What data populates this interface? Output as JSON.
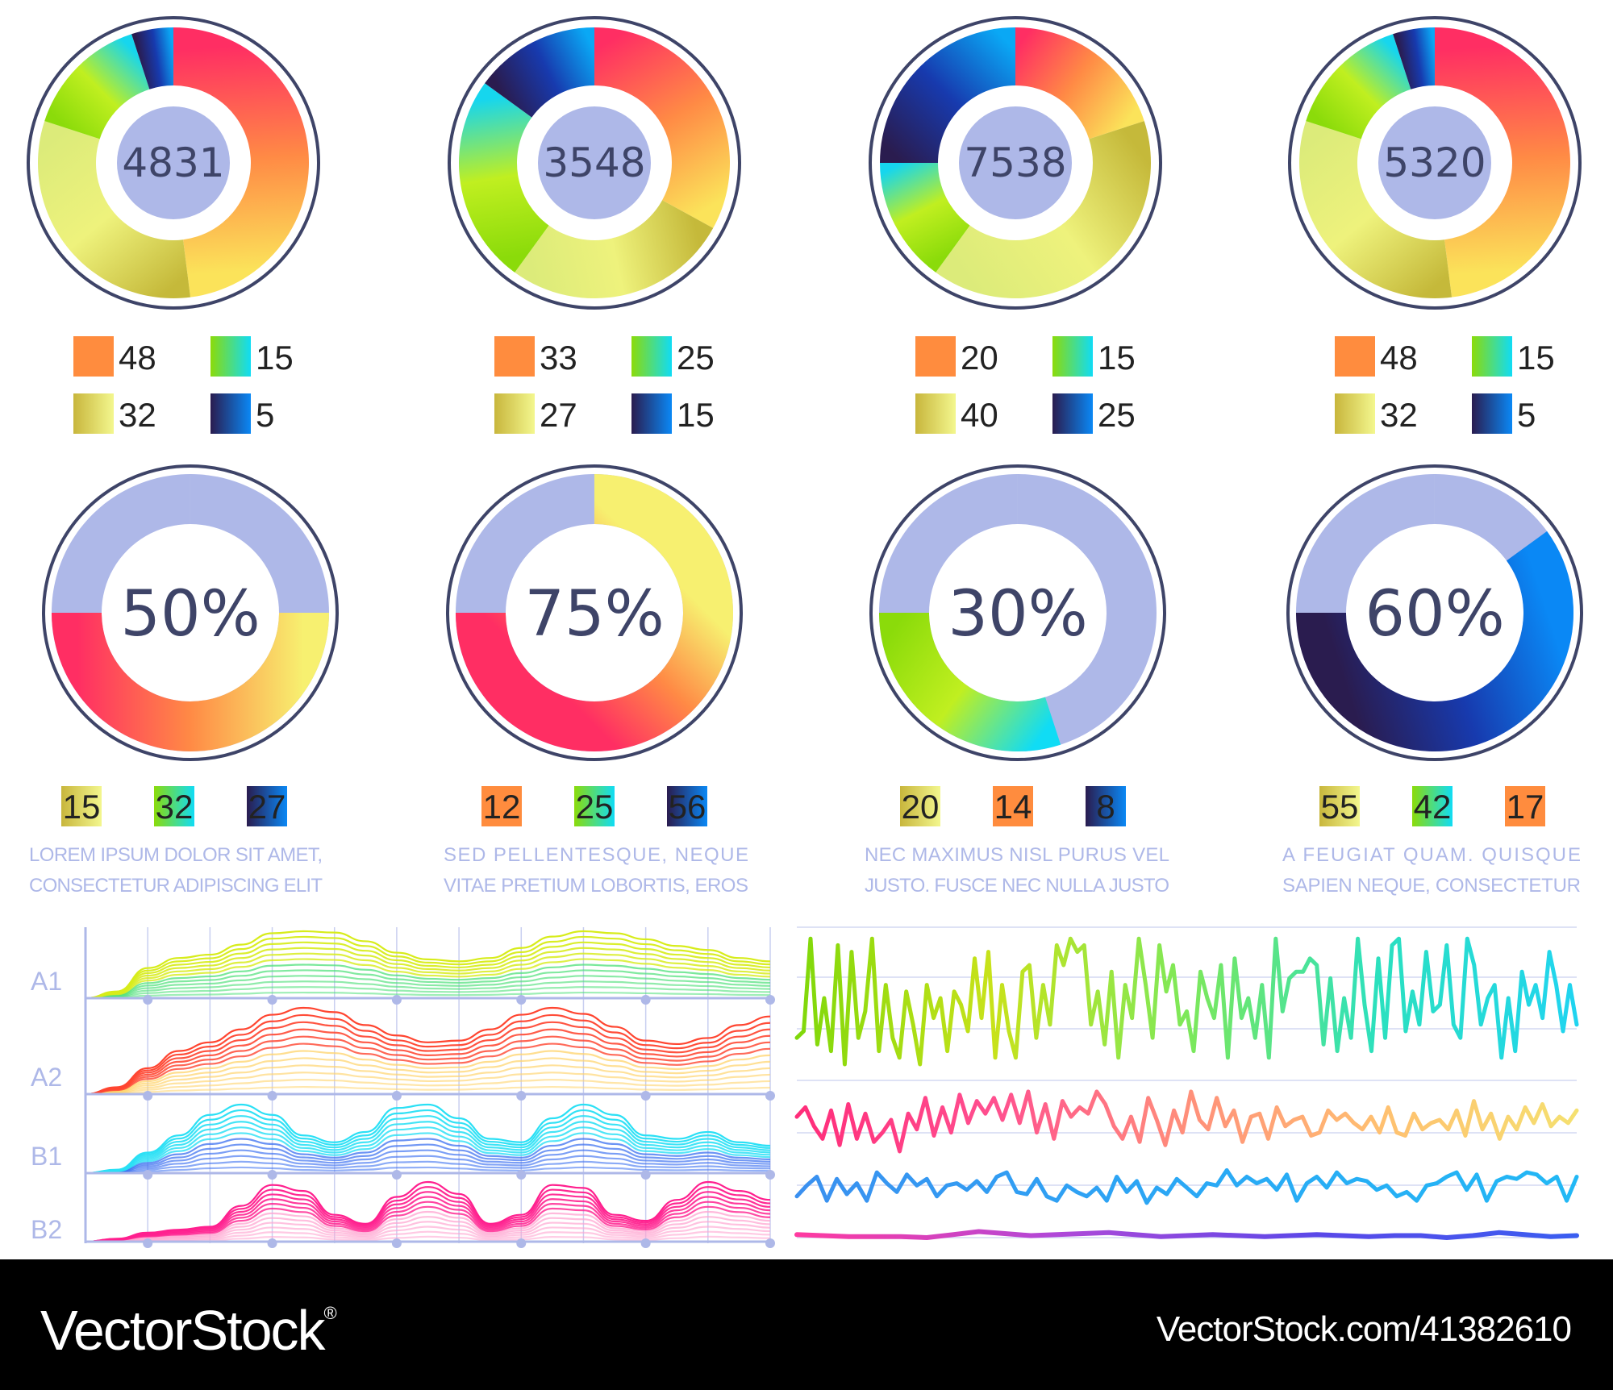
{
  "chart_data": [
    {
      "type": "pie",
      "center_label": "4831",
      "slices": [
        {
          "value": 48,
          "gradient": [
            "#ff2e63",
            "#ff8a45",
            "#fbe35a"
          ]
        },
        {
          "value": 32,
          "gradient": [
            "#c5b93a",
            "#eef27c",
            "#dceb7a"
          ]
        },
        {
          "value": 15,
          "gradient": [
            "#8bdb0a",
            "#c0ef20",
            "#16d6ee"
          ]
        },
        {
          "value": 5,
          "gradient": [
            "#2a1c4f",
            "#173aae",
            "#0aa8f5"
          ]
        }
      ],
      "legend": [
        {
          "value": "48",
          "swatch": [
            "#ff8c3e",
            "#ff8c3e"
          ]
        },
        {
          "value": "15",
          "swatch": [
            "#8bdb0a",
            "#10dcf5"
          ]
        },
        {
          "value": "32",
          "swatch": [
            "#c8b63c",
            "#f3f78e"
          ]
        },
        {
          "value": "5",
          "swatch": [
            "#2a1c4f",
            "#0a88f5"
          ]
        }
      ]
    },
    {
      "type": "pie",
      "center_label": "3548",
      "slices": [
        {
          "value": 33,
          "gradient": [
            "#ff2e63",
            "#ff8a45",
            "#fbe35a"
          ]
        },
        {
          "value": 27,
          "gradient": [
            "#c5b93a",
            "#eef27c",
            "#dceb7a"
          ]
        },
        {
          "value": 25,
          "gradient": [
            "#8bdb0a",
            "#c0ef20",
            "#16d6ee"
          ]
        },
        {
          "value": 15,
          "gradient": [
            "#2a1c4f",
            "#173aae",
            "#0aa8f5"
          ]
        }
      ],
      "legend": [
        {
          "value": "33",
          "swatch": [
            "#ff8c3e",
            "#ff8c3e"
          ]
        },
        {
          "value": "25",
          "swatch": [
            "#8bdb0a",
            "#10dcf5"
          ]
        },
        {
          "value": "27",
          "swatch": [
            "#c8b63c",
            "#f3f78e"
          ]
        },
        {
          "value": "15",
          "swatch": [
            "#2a1c4f",
            "#0a88f5"
          ]
        }
      ]
    },
    {
      "type": "pie",
      "center_label": "7538",
      "slices": [
        {
          "value": 20,
          "gradient": [
            "#ff2e63",
            "#ff8a45",
            "#fbe35a"
          ]
        },
        {
          "value": 40,
          "gradient": [
            "#c5b93a",
            "#eef27c",
            "#dceb7a"
          ]
        },
        {
          "value": 15,
          "gradient": [
            "#8bdb0a",
            "#c0ef20",
            "#16d6ee"
          ]
        },
        {
          "value": 25,
          "gradient": [
            "#2a1c4f",
            "#173aae",
            "#0aa8f5"
          ]
        }
      ],
      "legend": [
        {
          "value": "20",
          "swatch": [
            "#ff8c3e",
            "#ff8c3e"
          ]
        },
        {
          "value": "15",
          "swatch": [
            "#8bdb0a",
            "#10dcf5"
          ]
        },
        {
          "value": "40",
          "swatch": [
            "#c8b63c",
            "#f3f78e"
          ]
        },
        {
          "value": "25",
          "swatch": [
            "#2a1c4f",
            "#0a88f5"
          ]
        }
      ]
    },
    {
      "type": "pie",
      "center_label": "5320",
      "slices": [
        {
          "value": 48,
          "gradient": [
            "#ff2e63",
            "#ff8a45",
            "#fbe35a"
          ]
        },
        {
          "value": 32,
          "gradient": [
            "#c5b93a",
            "#eef27c",
            "#dceb7a"
          ]
        },
        {
          "value": 15,
          "gradient": [
            "#8bdb0a",
            "#c0ef20",
            "#16d6ee"
          ]
        },
        {
          "value": 5,
          "gradient": [
            "#2a1c4f",
            "#173aae",
            "#0aa8f5"
          ]
        }
      ],
      "legend": [
        {
          "value": "48",
          "swatch": [
            "#ff8c3e",
            "#ff8c3e"
          ]
        },
        {
          "value": "15",
          "swatch": [
            "#8bdb0a",
            "#10dcf5"
          ]
        },
        {
          "value": "32",
          "swatch": [
            "#c8b63c",
            "#f3f78e"
          ]
        },
        {
          "value": "5",
          "swatch": [
            "#2a1c4f",
            "#0a88f5"
          ]
        }
      ]
    },
    {
      "type": "pie",
      "center_label": "50%",
      "percent": 50,
      "track_color": "#aeb8e8",
      "gradient": [
        "#ff2e63",
        "#ff8a45",
        "#f7f070"
      ],
      "start": "left",
      "legend": [
        {
          "value": "15",
          "swatch": [
            "#c8b63c",
            "#f3f78e"
          ]
        },
        {
          "value": "32",
          "swatch": [
            "#8bdb0a",
            "#10dcf5"
          ]
        },
        {
          "value": "27",
          "swatch": [
            "#2a1c4f",
            "#0a88f5"
          ]
        }
      ],
      "caption": [
        "LOREM IPSUM DOLOR SIT AMET,",
        "CONSECTETUR ADIPISCING ELIT"
      ]
    },
    {
      "type": "pie",
      "center_label": "75%",
      "percent": 75,
      "track_color": "#aeb8e8",
      "gradient": [
        "#ff2e63",
        "#ff8a45",
        "#f7f070"
      ],
      "start": "left",
      "legend": [
        {
          "value": "12",
          "swatch": [
            "#ff8c3e",
            "#ff8c3e"
          ]
        },
        {
          "value": "25",
          "swatch": [
            "#8bdb0a",
            "#10dcf5"
          ]
        },
        {
          "value": "56",
          "swatch": [
            "#2a1c4f",
            "#0a88f5"
          ]
        }
      ],
      "caption": [
        "SED PELLENTESQUE, NEQUE",
        "VITAE PRETIUM LOBORTIS, EROS"
      ]
    },
    {
      "type": "pie",
      "center_label": "30%",
      "percent": 30,
      "track_color": "#aeb8e8",
      "gradient": [
        "#8bdb0a",
        "#c0ef20",
        "#10dcf5"
      ],
      "start": "left",
      "legend": [
        {
          "value": "20",
          "swatch": [
            "#c8b63c",
            "#f3f78e"
          ]
        },
        {
          "value": "14",
          "swatch": [
            "#ff8c3e",
            "#ff8c3e"
          ]
        },
        {
          "value": "8",
          "swatch": [
            "#2a1c4f",
            "#0a88f5"
          ]
        }
      ],
      "caption": [
        "NEC MAXIMUS NISL PURUS VEL",
        "JUSTO. FUSCE NEC NULLA JUSTO"
      ]
    },
    {
      "type": "pie",
      "center_label": "60%",
      "percent": 60,
      "track_color": "#aeb8e8",
      "gradient": [
        "#2a1c4f",
        "#173aae",
        "#0a88f5"
      ],
      "start": "left",
      "legend": [
        {
          "value": "55",
          "swatch": [
            "#c8b63c",
            "#f3f78e"
          ]
        },
        {
          "value": "42",
          "swatch": [
            "#8bdb0a",
            "#10dcf5"
          ]
        },
        {
          "value": "17",
          "swatch": [
            "#ff8c3e",
            "#ff8c3e"
          ]
        }
      ],
      "caption": [
        "A FEUGIAT QUAM. QUISQUE",
        "SAPIEN NEQUE, CONSECTETUR"
      ]
    },
    {
      "type": "area",
      "grid": true,
      "x": [
        0,
        0.5,
        1,
        1.5,
        2,
        2.5,
        3,
        3.5,
        4,
        4.5,
        5,
        5.5,
        6,
        6.5,
        7,
        7.5,
        8,
        8.5,
        9,
        9.5,
        10,
        10.5,
        11
      ],
      "series": [
        {
          "name": "A1",
          "colors": [
            "#4fe07a",
            "#d7ec1a"
          ],
          "values": [
            0,
            0.1,
            0.45,
            0.6,
            0.65,
            0.8,
            0.97,
            1.0,
            0.98,
            0.85,
            0.68,
            0.58,
            0.55,
            0.6,
            0.75,
            0.92,
            1.0,
            0.97,
            0.88,
            0.78,
            0.72,
            0.6,
            0.55
          ]
        },
        {
          "name": "A2",
          "colors": [
            "#ffd36a",
            "#ff4530"
          ],
          "values": [
            0,
            0.08,
            0.3,
            0.5,
            0.6,
            0.75,
            0.92,
            1.0,
            0.95,
            0.8,
            0.68,
            0.6,
            0.62,
            0.75,
            0.92,
            1.0,
            0.93,
            0.78,
            0.62,
            0.58,
            0.65,
            0.8,
            0.9
          ]
        },
        {
          "name": "B1",
          "colors": [
            "#3a6ff0",
            "#2ae0f5"
          ],
          "values": [
            0,
            0.05,
            0.3,
            0.55,
            0.85,
            1.0,
            0.85,
            0.55,
            0.45,
            0.6,
            0.95,
            1.0,
            0.8,
            0.5,
            0.45,
            0.8,
            1.0,
            0.85,
            0.55,
            0.5,
            0.6,
            0.45,
            0.4
          ]
        },
        {
          "name": "B2",
          "colors": [
            "#ffa3d0",
            "#ff1f8e"
          ],
          "values": [
            0,
            0.05,
            0.15,
            0.2,
            0.25,
            0.6,
            0.95,
            0.85,
            0.45,
            0.3,
            0.75,
            1.0,
            0.8,
            0.3,
            0.45,
            0.95,
            0.9,
            0.45,
            0.35,
            0.7,
            1.0,
            0.85,
            0.7
          ]
        }
      ]
    },
    {
      "type": "line",
      "grid": true,
      "series": [
        {
          "colors": [
            "#7fd80a",
            "#c8e21a",
            "#7de85a",
            "#2ae0c0",
            "#20d4f0"
          ],
          "values": [
            0.2,
            0.25,
            0.95,
            0.15,
            0.5,
            0.1,
            0.9,
            0.0,
            0.85,
            0.2,
            0.4,
            0.95,
            0.1,
            0.6,
            0.2,
            0.05,
            0.55,
            0.3,
            0.0,
            0.6,
            0.35,
            0.5,
            0.1,
            0.55,
            0.45,
            0.25,
            0.8,
            0.35,
            0.85,
            0.05,
            0.6,
            0.25,
            0.05,
            0.7,
            0.75,
            0.2,
            0.6,
            0.3,
            0.9,
            0.75,
            0.95,
            0.85,
            0.9,
            0.3,
            0.55,
            0.15,
            0.7,
            0.05,
            0.6,
            0.35,
            0.95,
            0.6,
            0.2,
            0.9,
            0.55,
            0.75,
            0.3,
            0.4,
            0.1,
            0.7,
            0.5,
            0.35,
            0.75,
            0.05,
            0.8,
            0.35,
            0.5,
            0.2,
            0.6,
            0.05,
            0.95,
            0.4,
            0.65,
            0.7,
            0.7,
            0.8,
            0.75,
            0.15,
            0.65,
            0.1,
            0.5,
            0.2,
            0.95,
            0.45,
            0.1,
            0.8,
            0.2,
            0.9,
            0.95,
            0.25,
            0.55,
            0.3,
            0.85,
            0.4,
            0.45,
            0.9,
            0.3,
            0.2,
            0.95,
            0.75,
            0.3,
            0.5,
            0.6,
            0.05,
            0.5,
            0.1,
            0.7,
            0.45,
            0.6,
            0.35,
            0.85,
            0.6,
            0.25,
            0.6,
            0.3
          ]
        },
        {
          "colors": [
            "#ff2d7a",
            "#ff4f8f",
            "#ff8f7a",
            "#ffc070",
            "#f5e070"
          ],
          "values": [
            0.55,
            0.7,
            0.4,
            0.2,
            0.65,
            0.1,
            0.75,
            0.2,
            0.6,
            0.15,
            0.3,
            0.5,
            0.0,
            0.6,
            0.35,
            0.85,
            0.25,
            0.7,
            0.3,
            0.9,
            0.45,
            0.8,
            0.6,
            0.85,
            0.5,
            0.9,
            0.45,
            0.95,
            0.3,
            0.75,
            0.2,
            0.8,
            0.55,
            0.7,
            0.6,
            0.95,
            0.75,
            0.4,
            0.2,
            0.55,
            0.15,
            0.85,
            0.5,
            0.1,
            0.65,
            0.3,
            0.95,
            0.5,
            0.35,
            0.85,
            0.4,
            0.65,
            0.15,
            0.55,
            0.6,
            0.2,
            0.7,
            0.4,
            0.5,
            0.55,
            0.25,
            0.3,
            0.65,
            0.5,
            0.6,
            0.45,
            0.35,
            0.55,
            0.3,
            0.7,
            0.3,
            0.25,
            0.6,
            0.35,
            0.45,
            0.5,
            0.35,
            0.65,
            0.25,
            0.8,
            0.35,
            0.6,
            0.2,
            0.55,
            0.35,
            0.7,
            0.45,
            0.75,
            0.4,
            0.55,
            0.45,
            0.65
          ]
        },
        {
          "colors": [
            "#3a90f0",
            "#2aa8f5",
            "#22b8f5"
          ],
          "values": [
            0.3,
            0.55,
            0.75,
            0.2,
            0.7,
            0.35,
            0.6,
            0.2,
            0.85,
            0.6,
            0.4,
            0.8,
            0.55,
            0.7,
            0.3,
            0.55,
            0.6,
            0.45,
            0.65,
            0.4,
            0.75,
            0.85,
            0.4,
            0.35,
            0.7,
            0.3,
            0.2,
            0.55,
            0.4,
            0.3,
            0.5,
            0.2,
            0.75,
            0.4,
            0.65,
            0.15,
            0.5,
            0.35,
            0.7,
            0.5,
            0.3,
            0.6,
            0.55,
            0.9,
            0.55,
            0.75,
            0.6,
            0.7,
            0.45,
            0.8,
            0.2,
            0.6,
            0.75,
            0.5,
            0.85,
            0.6,
            0.7,
            0.65,
            0.45,
            0.55,
            0.3,
            0.4,
            0.2,
            0.55,
            0.6,
            0.75,
            0.85,
            0.45,
            0.8,
            0.2,
            0.65,
            0.75,
            0.7,
            0.85,
            0.8,
            0.6,
            0.75,
            0.2,
            0.75
          ]
        },
        {
          "colors": [
            "#ff3aa0",
            "#b048d8",
            "#5a48e8",
            "#3a5ef0"
          ],
          "values": [
            0.55,
            0.5,
            0.45,
            0.45,
            0.45,
            0.4,
            0.55,
            0.7,
            0.6,
            0.5,
            0.55,
            0.6,
            0.65,
            0.55,
            0.45,
            0.5,
            0.55,
            0.5,
            0.45,
            0.5,
            0.55,
            0.5,
            0.45,
            0.5,
            0.5,
            0.4,
            0.5,
            0.65,
            0.55,
            0.45,
            0.5
          ]
        }
      ]
    }
  ],
  "footer": {
    "brand": "VectorStock",
    "brand_mark": "®",
    "image_id": "VectorStock.com/41382610"
  }
}
